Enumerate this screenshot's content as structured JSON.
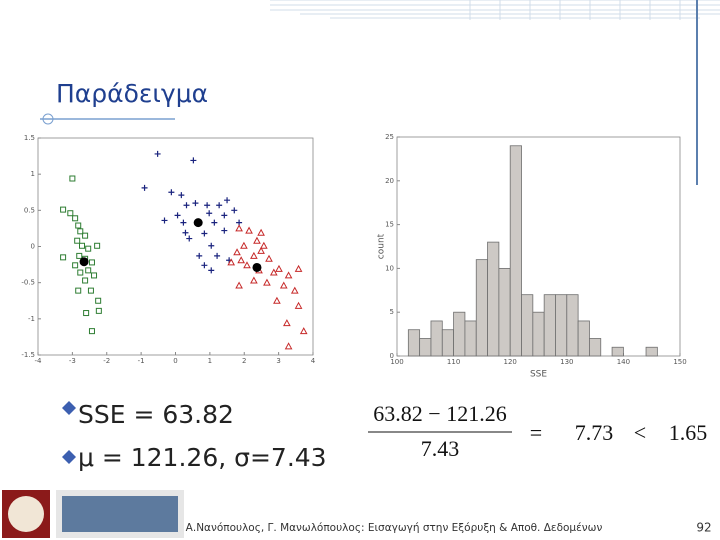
{
  "slide": {
    "title": "Παράδειγμα",
    "bullets": [
      "SSE = 63.82",
      "μ = 121.26, σ=7.43"
    ],
    "formula": {
      "numerator": "63.82 − 121.26",
      "denominator": "7.43",
      "equals": "=",
      "result": "7.73",
      "relation": "<",
      "threshold": "1.65"
    },
    "footer": {
      "text": "Α.Νανόπουλος, Γ. Μανωλόπουλος: Εισαγωγή στην Εξόρυξη & Αποθ. Δεδομένων",
      "page": "92"
    }
  },
  "chart_data": [
    {
      "type": "scatter",
      "xlim": [
        -4,
        4
      ],
      "ylim": [
        -1.5,
        1.5
      ],
      "xticks": [
        -4,
        -3,
        -2,
        -1,
        0,
        1,
        2,
        3,
        4
      ],
      "yticks": [
        -1.5,
        -1,
        -0.5,
        0,
        0.5,
        1,
        1.5
      ],
      "series": [
        {
          "color": "#2e7d32",
          "marker": "square",
          "x": [
            -3.0,
            -3.27,
            -3.06,
            -2.92,
            -2.83,
            -2.77,
            -2.63,
            -2.86,
            -2.72,
            -2.54,
            -2.8,
            -2.63,
            -2.43,
            -2.92,
            -2.77,
            -2.54,
            -2.37,
            -2.63,
            -2.83,
            -2.46,
            -2.25,
            -2.6,
            -2.23,
            -2.43,
            -3.27,
            -2.28
          ],
          "values": [
            0.94,
            0.51,
            0.46,
            0.39,
            0.29,
            0.21,
            0.15,
            0.08,
            0.01,
            -0.03,
            -0.13,
            -0.17,
            -0.22,
            -0.26,
            -0.36,
            -0.33,
            -0.4,
            -0.47,
            -0.61,
            -0.61,
            -0.75,
            -0.92,
            -0.89,
            -1.17,
            -0.15,
            0.01
          ]
        },
        {
          "color": "#1a237e",
          "marker": "plus",
          "x": [
            -0.52,
            0.52,
            -0.9,
            -0.12,
            0.17,
            0.32,
            0.58,
            -0.32,
            0.06,
            0.23,
            0.98,
            1.27,
            1.5,
            1.71,
            1.13,
            1.42,
            0.84,
            0.4,
            1.04,
            1.21,
            0.84,
            1.04,
            1.56,
            0.69,
            0.29,
            1.85,
            0.92,
            1.42
          ],
          "values": [
            1.28,
            1.19,
            0.81,
            0.75,
            0.71,
            0.57,
            0.6,
            0.36,
            0.43,
            0.33,
            0.46,
            0.57,
            0.64,
            0.5,
            0.33,
            0.22,
            0.18,
            0.11,
            0.01,
            -0.13,
            -0.26,
            -0.33,
            -0.19,
            -0.13,
            0.19,
            0.33,
            0.57,
            0.43
          ]
        },
        {
          "color": "#c62828",
          "marker": "triangle",
          "x": [
            1.85,
            2.14,
            2.37,
            2.57,
            1.99,
            1.79,
            2.28,
            2.49,
            2.72,
            1.62,
            2.08,
            2.43,
            2.86,
            3.01,
            3.29,
            3.58,
            3.15,
            3.47,
            2.66,
            2.28,
            1.85,
            2.95,
            3.58,
            3.24,
            3.73,
            3.29,
            1.91,
            2.49
          ],
          "values": [
            0.25,
            0.22,
            0.08,
            0.01,
            0.01,
            -0.08,
            -0.13,
            -0.06,
            -0.17,
            -0.22,
            -0.26,
            -0.33,
            -0.36,
            -0.31,
            -0.4,
            -0.31,
            -0.54,
            -0.61,
            -0.5,
            -0.47,
            -0.54,
            -0.75,
            -0.82,
            -1.06,
            -1.17,
            -1.38,
            -0.19,
            0.19
          ]
        },
        {
          "color": "#000000",
          "marker": "dot",
          "x": [
            0.66,
            -2.66,
            2.37
          ],
          "values": [
            0.33,
            -0.21,
            -0.29
          ]
        }
      ]
    },
    {
      "type": "histogram",
      "xlabel": "SSE",
      "ylabel": "count",
      "color": "#cdc9c5",
      "xlim": [
        100,
        150
      ],
      "ylim": [
        0,
        25
      ],
      "xticks": [
        100,
        110,
        120,
        130,
        140,
        150
      ],
      "yticks": [
        0,
        5,
        10,
        15,
        20,
        25
      ],
      "bins": [
        102,
        104,
        106,
        108,
        110,
        112,
        114,
        116,
        118,
        120,
        122,
        124,
        126,
        128,
        130,
        132,
        134,
        136,
        138,
        140,
        142,
        144,
        146,
        148
      ],
      "values": [
        3,
        2,
        4,
        3,
        5,
        4,
        11,
        13,
        10,
        24,
        7,
        5,
        7,
        7,
        7,
        4,
        2,
        0,
        1,
        0,
        0,
        1,
        0
      ]
    }
  ]
}
